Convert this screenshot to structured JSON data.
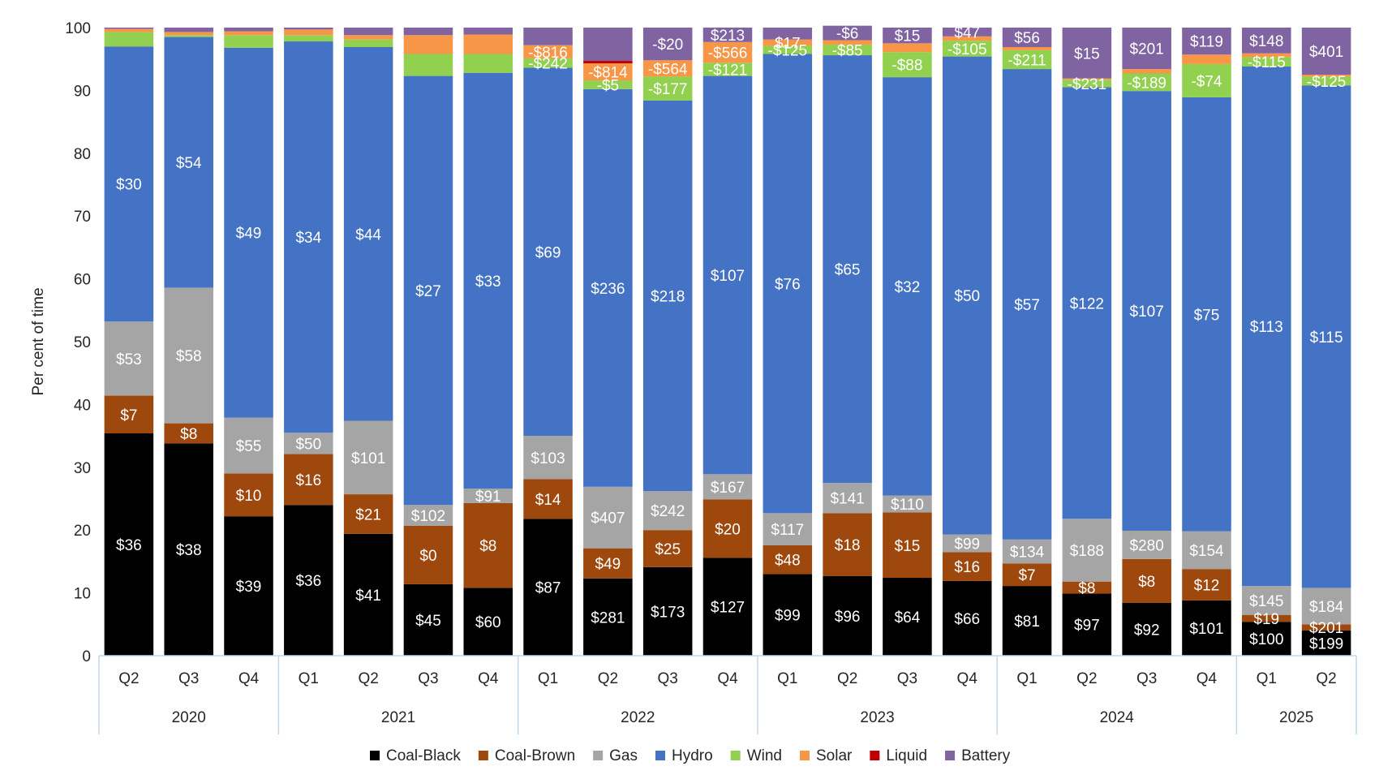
{
  "chart_data": {
    "type": "bar",
    "stacked": true,
    "ylabel": "Per cent of time",
    "ylim": [
      0,
      100
    ],
    "yticks": [
      0,
      10,
      20,
      30,
      40,
      50,
      60,
      70,
      80,
      90,
      100
    ],
    "legend_position": "bottom",
    "groups": [
      {
        "label": "2020",
        "quarters": [
          "Q2",
          "Q3",
          "Q4"
        ]
      },
      {
        "label": "2021",
        "quarters": [
          "Q1",
          "Q2",
          "Q3",
          "Q4"
        ]
      },
      {
        "label": "2022",
        "quarters": [
          "Q1",
          "Q2",
          "Q3",
          "Q4"
        ]
      },
      {
        "label": "2023",
        "quarters": [
          "Q1",
          "Q2",
          "Q3",
          "Q4"
        ]
      },
      {
        "label": "2024",
        "quarters": [
          "Q1",
          "Q2",
          "Q3",
          "Q4"
        ]
      },
      {
        "label": "2025",
        "quarters": [
          "Q1",
          "Q2"
        ]
      }
    ],
    "categories": [
      "2020 Q2",
      "2020 Q3",
      "2020 Q4",
      "2021 Q1",
      "2021 Q2",
      "2021 Q3",
      "2021 Q4",
      "2022 Q1",
      "2022 Q2",
      "2022 Q3",
      "2022 Q4",
      "2023 Q1",
      "2023 Q2",
      "2023 Q3",
      "2023 Q4",
      "2024 Q1",
      "2024 Q2",
      "2024 Q3",
      "2024 Q4",
      "2025 Q1",
      "2025 Q2"
    ],
    "series": [
      {
        "name": "Coal-Black",
        "color": "#000000",
        "label_color": "#ffffff",
        "values": [
          35.4,
          33.8,
          22.2,
          24.0,
          19.4,
          11.4,
          10.8,
          21.8,
          12.3,
          14.1,
          15.6,
          13.0,
          12.7,
          12.4,
          11.9,
          11.1,
          9.9,
          8.4,
          8.8,
          5.4,
          4.0
        ],
        "labels": [
          "$36",
          "$38",
          "$39",
          "$36",
          "$41",
          "$45",
          "$60",
          "$87",
          "$281",
          "$173",
          "$127",
          "$99",
          "$96",
          "$64",
          "$66",
          "$81",
          "$97",
          "$92",
          "$101",
          "$100",
          "$199"
        ]
      },
      {
        "name": "Coal-Brown",
        "color": "#9E480E",
        "label_color": "#ffffff",
        "values": [
          6.0,
          3.2,
          6.8,
          8.1,
          6.3,
          9.3,
          13.5,
          6.3,
          4.8,
          5.9,
          9.3,
          4.6,
          10.0,
          10.4,
          4.6,
          3.6,
          1.9,
          7.0,
          5.0,
          1.1,
          1.0
        ],
        "labels": [
          "$7",
          "$8",
          "$10",
          "$16",
          "$21",
          "$0",
          "$8",
          "$14",
          "$49",
          "$25",
          "$20",
          "$48",
          "$18",
          "$15",
          "$16",
          "$7",
          "$8",
          "$8",
          "$12",
          "$19",
          "$201"
        ]
      },
      {
        "name": "Gas",
        "color": "#A5A5A5",
        "label_color": "#ffffff",
        "values": [
          11.8,
          21.6,
          8.9,
          3.4,
          11.7,
          3.3,
          2.3,
          6.9,
          9.8,
          6.2,
          4.0,
          5.1,
          4.8,
          2.7,
          2.8,
          3.8,
          10.0,
          4.5,
          6.0,
          4.6,
          5.8
        ],
        "labels": [
          "$53",
          "$58",
          "$55",
          "$50",
          "$101",
          "$102",
          "$91",
          "$103",
          "$407",
          "$242",
          "$167",
          "$117",
          "$141",
          "$110",
          "$99",
          "$134",
          "$188",
          "$280",
          "$154",
          "$145",
          "$184"
        ]
      },
      {
        "name": "Hydro",
        "color": "#4472C4",
        "label_color": "#ffffff",
        "values": [
          43.8,
          39.9,
          58.9,
          62.3,
          59.5,
          68.3,
          66.2,
          58.6,
          63.3,
          62.2,
          63.4,
          73.1,
          68.1,
          66.6,
          76.1,
          74.9,
          68.7,
          70.0,
          69.1,
          82.7,
          80.0
        ],
        "labels": [
          "$30",
          "$54",
          "$49",
          "$34",
          "$44",
          "$27",
          "$33",
          "$69",
          "$236",
          "$218",
          "$107",
          "$76",
          "$65",
          "$32",
          "$50",
          "$57",
          "$122",
          "$107",
          "$75",
          "$113",
          "$115"
        ]
      },
      {
        "name": "Wind",
        "color": "#92D050",
        "label_color": "#ffffff",
        "values": [
          2.3,
          0.3,
          2.0,
          1.0,
          1.2,
          3.5,
          3.0,
          1.5,
          1.4,
          3.8,
          2.1,
          1.3,
          1.7,
          4.0,
          2.5,
          3.0,
          1.2,
          2.8,
          5.3,
          1.5,
          1.4
        ],
        "labels": [
          "",
          "",
          "",
          "",
          "",
          "",
          "",
          "-$242",
          "-$5",
          "-$177",
          "-$121",
          "-$125",
          "-$85",
          "-$88",
          "-$105",
          "-$211",
          "-$231",
          "-$189",
          "-$74",
          "-$115",
          "-$125"
        ]
      },
      {
        "name": "Solar",
        "color": "#F79646",
        "label_color": "#ffffff",
        "values": [
          0.5,
          0.5,
          0.6,
          0.9,
          0.7,
          3.0,
          3.1,
          2.1,
          2.7,
          2.6,
          3.3,
          1.0,
          0.7,
          1.4,
          0.7,
          0.5,
          0.2,
          0.7,
          1.5,
          0.6,
          0.3
        ],
        "labels": [
          "",
          "",
          "",
          "",
          "",
          "",
          "",
          "-$816",
          "-$814",
          "-$564",
          "-$566",
          "$17",
          "",
          "",
          "",
          "",
          "",
          "",
          "",
          "",
          ""
        ]
      },
      {
        "name": "Liquid",
        "color": "#C00000",
        "label_color": "#ffffff",
        "values": [
          0,
          0,
          0,
          0,
          0,
          0,
          0,
          0,
          0.4,
          0,
          0,
          0,
          0,
          0,
          0,
          0,
          0,
          0,
          0,
          0,
          0
        ],
        "labels": [
          "",
          "",
          "",
          "",
          "",
          "",
          "",
          "",
          "",
          "",
          "",
          "",
          "",
          "",
          "",
          "",
          "",
          "",
          "",
          "",
          ""
        ]
      },
      {
        "name": "Battery",
        "color": "#8064A2",
        "label_color": "#ffffff",
        "values": [
          0.2,
          0.7,
          0.6,
          0.3,
          1.2,
          1.2,
          1.1,
          2.8,
          5.3,
          5.2,
          2.3,
          1.9,
          2.3,
          2.5,
          1.4,
          3.1,
          8.1,
          6.6,
          4.3,
          4.1,
          7.5
        ],
        "labels": [
          "",
          "",
          "",
          "",
          "",
          "",
          "",
          "",
          "",
          "-$20",
          "$213",
          "",
          "-$6",
          "$15",
          "$47",
          "$56",
          "$15",
          "$201",
          "$119",
          "$148",
          "$401"
        ]
      }
    ]
  }
}
